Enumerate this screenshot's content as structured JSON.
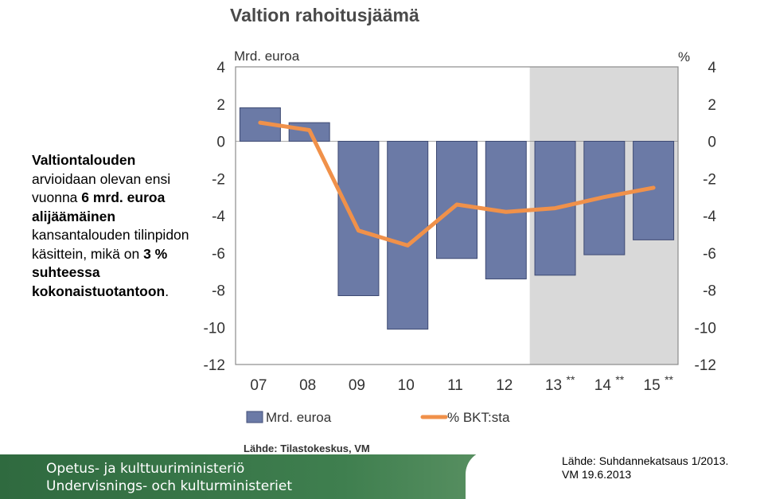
{
  "side_text": {
    "b1": "Valtiontalouden",
    "t1": " arvioidaan olevan ensi vuonna ",
    "b2": "6 mrd. euroa alijäämäinen",
    "t2": " kansantalouden tilinpidon käsittein, mikä on ",
    "b3": "3 % suhteessa kokonaistuotantoon",
    "t3": "."
  },
  "chart_data": {
    "type": "bar",
    "title": "Valtion rahoitusjäämä",
    "ylabel_left": "Mrd. euroa",
    "ylabel_right": "%",
    "ylim": [
      -12,
      4
    ],
    "yticks": [
      4,
      2,
      0,
      -2,
      -4,
      -6,
      -8,
      -10,
      -12
    ],
    "categories": [
      "07",
      "08",
      "09",
      "10",
      "11",
      "12",
      "13",
      "14",
      "15"
    ],
    "category_marks": [
      "",
      "",
      "",
      "",
      "",
      "",
      "**",
      "**",
      "**"
    ],
    "forecast_shaded_from": "13",
    "series": [
      {
        "name": "Mrd. euroa",
        "type": "bar",
        "color": "#6b7aa6",
        "values": [
          1.8,
          1.0,
          -8.3,
          -10.1,
          -6.3,
          -7.4,
          -7.2,
          -6.1,
          -5.3
        ]
      },
      {
        "name": "% BKT:sta",
        "type": "line",
        "color": "#f0914a",
        "values": [
          1.0,
          0.6,
          -4.8,
          -5.6,
          -3.4,
          -3.8,
          -3.6,
          -3.0,
          -2.5
        ]
      }
    ],
    "grid": false,
    "legend": "bottom",
    "source": "Lähde: Tilastokeskus, VM"
  },
  "footer": {
    "ministry_fi": "Opetus- ja kulttuuriministeriö",
    "ministry_sv": "Undervisnings- och kulturministeriet",
    "source_line1": "Lähde: Suhdannekatsaus 1/2013.",
    "source_line2": "VM 19.6.2013"
  }
}
